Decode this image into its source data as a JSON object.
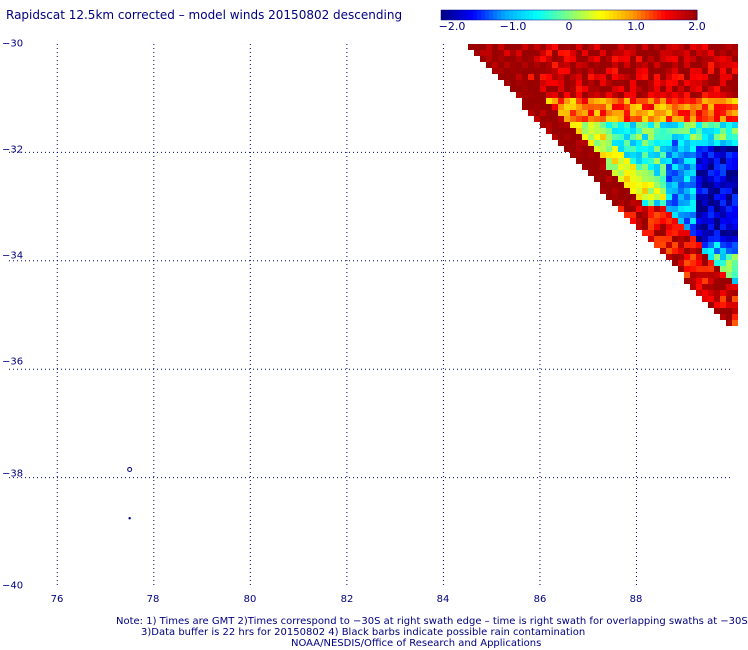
{
  "title": "Rapidscat 12.5km corrected – model winds 20150802 descending",
  "colorbar": {
    "ticks": [
      "−2.0",
      "−1.0",
      "0",
      "1.0",
      "2.0"
    ],
    "range": [
      -2.0,
      2.0
    ],
    "colors": [
      "#000080",
      "#0000ff",
      "#00aaff",
      "#00ffff",
      "#80ff80",
      "#ffff00",
      "#ff9900",
      "#ff0000",
      "#990000"
    ]
  },
  "map": {
    "lon_range": [
      75,
      90
    ],
    "lat_range": [
      -40,
      -30
    ],
    "lat_labels": [
      "−30",
      "−32",
      "−34",
      "−36",
      "−38",
      "−40"
    ],
    "lon_labels": [
      "76",
      "78",
      "80",
      "82",
      "84",
      "86",
      "88"
    ],
    "grid_color": "#000080",
    "markers": [
      {
        "name": "small-circle-marker",
        "lon": 77.5,
        "lat": -37.85
      },
      {
        "name": "small-dot-marker",
        "lon": 77.5,
        "lat": -38.75
      }
    ]
  },
  "notes": {
    "line1": "Note: 1) Times are GMT 2)Times correspond to −30S at right swath edge – time is right swath for overlapping swaths at −30S",
    "line2": "3)Data buffer is 22 hrs for 20150802 4) Black barbs indicate possible rain contamination",
    "line3": "NOAA/NESDIS/Office of Research and Applications"
  }
}
